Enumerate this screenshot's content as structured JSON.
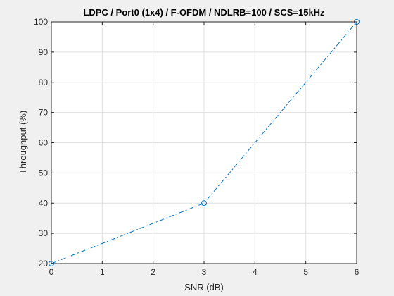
{
  "chart_data": {
    "type": "line",
    "title": "LDPC / Port0 (1x4) / F-OFDM / NDLRB=100 / SCS=15kHz",
    "xlabel": "SNR (dB)",
    "ylabel": "Throughput (%)",
    "xlim": [
      0,
      6
    ],
    "ylim": [
      20,
      100
    ],
    "xticks": [
      0,
      1,
      2,
      3,
      4,
      5,
      6
    ],
    "yticks": [
      20,
      30,
      40,
      50,
      60,
      70,
      80,
      90,
      100
    ],
    "grid": true,
    "series": [
      {
        "x": [
          0,
          3,
          6
        ],
        "y": [
          20,
          40,
          100
        ],
        "line_style": "dash-dot",
        "marker": "circle",
        "color": "#0072bd"
      }
    ]
  }
}
